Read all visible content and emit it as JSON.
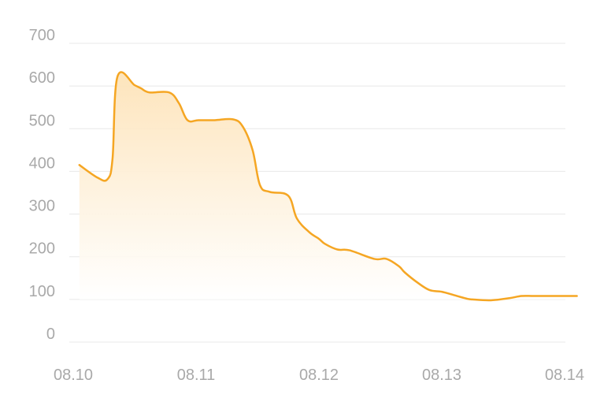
{
  "chart_data": {
    "type": "area",
    "title": "",
    "xlabel": "",
    "ylabel": "",
    "ylim": [
      0,
      700
    ],
    "y_ticks": [
      "0",
      "100",
      "200",
      "300",
      "400",
      "500",
      "600",
      "700"
    ],
    "x_ticks": [
      "08.10",
      "08.11",
      "08.12",
      "08.13",
      "08.14"
    ],
    "grid": true,
    "legend": "none",
    "colors": {
      "line": "#f5a623",
      "fill_top": "#fde3b8",
      "fill_bottom": "#ffffff",
      "grid": "#e8e8e8",
      "text": "#a9a9a9"
    },
    "series": [
      {
        "x": [
          10.05,
          10.2,
          10.28,
          10.32,
          10.36,
          10.5,
          10.55,
          10.62,
          10.78,
          10.86,
          10.93,
          11.02,
          11.15,
          11.3,
          11.38,
          11.46,
          11.52,
          11.6,
          11.75,
          11.82,
          11.92,
          12.0,
          12.05,
          12.15,
          12.25,
          12.45,
          12.55,
          12.65,
          12.7,
          12.8,
          12.9,
          13.0,
          13.1,
          13.2,
          13.25,
          13.4,
          13.55,
          13.65,
          13.75,
          13.9,
          14.0,
          14.1
        ],
        "y": [
          415,
          385,
          382,
          430,
          622,
          602,
          595,
          585,
          585,
          560,
          520,
          520,
          520,
          522,
          505,
          450,
          368,
          352,
          343,
          290,
          258,
          242,
          230,
          217,
          215,
          195,
          195,
          178,
          163,
          140,
          122,
          118,
          110,
          102,
          100,
          98,
          103,
          108,
          108,
          108,
          108,
          108
        ]
      }
    ]
  }
}
